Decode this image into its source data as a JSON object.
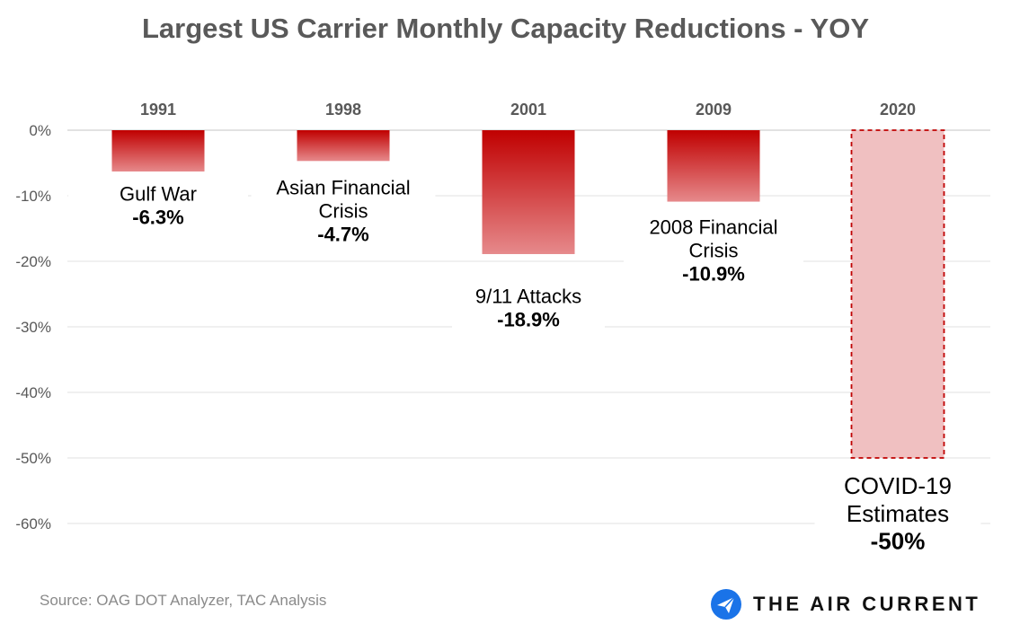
{
  "chart_data": {
    "type": "bar",
    "title": "Largest US Carrier Monthly Capacity Reductions - YOY",
    "categories": [
      "1991",
      "1998",
      "2001",
      "2009",
      "2020"
    ],
    "values": [
      -6.3,
      -4.7,
      -18.9,
      -10.9,
      -50
    ],
    "annotations": [
      {
        "lines": [
          "Gulf War"
        ],
        "value_label": "-6.3%"
      },
      {
        "lines": [
          "Asian Financial",
          "Crisis"
        ],
        "value_label": "-4.7%"
      },
      {
        "lines": [
          "9/11 Attacks"
        ],
        "value_label": "-18.9%"
      },
      {
        "lines": [
          "2008 Financial",
          "Crisis"
        ],
        "value_label": "-10.9%"
      },
      {
        "lines": [
          "COVID-19",
          "Estimates"
        ],
        "value_label": "-50%"
      }
    ],
    "estimate_flags": [
      false,
      false,
      false,
      false,
      true
    ],
    "yticks": [
      0,
      -10,
      -20,
      -30,
      -40,
      -50,
      -60
    ],
    "ytick_labels": [
      "0%",
      "-10%",
      "-20%",
      "-30%",
      "-40%",
      "-50%",
      "-60%"
    ],
    "ylim": [
      -60,
      0
    ],
    "grid": true,
    "colors": {
      "bar_top": "#c00000",
      "bar_bottom": "#e6898b",
      "estimate_fill": "#f0c0c1",
      "estimate_border": "#c00000",
      "grid": "#e6e6e6",
      "tick_text": "#595959",
      "category_text": "#595959"
    }
  },
  "source": "Source: OAG DOT Analyzer, TAC Analysis",
  "logo": {
    "name": "THE AIR CURRENT",
    "icon": "paper-plane-icon",
    "icon_color": "#1a73e8"
  }
}
